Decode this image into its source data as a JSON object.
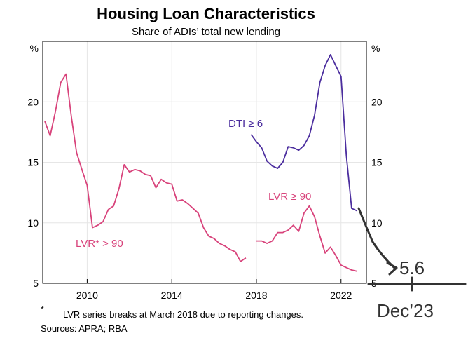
{
  "title": "Housing Loan Characteristics",
  "subtitle": "Share of ADIs’ total new lending",
  "footnote_marker": "*",
  "footnote": "LVR series breaks at March 2018 due to reporting changes.",
  "sources": "Sources: APRA; RBA",
  "annotations": {
    "value": "5.6",
    "date": "Dec’23"
  },
  "colors": {
    "dti": "#4b2d9e",
    "lvr": "#d8437b",
    "annotation": "#333333",
    "axis": "#000000",
    "grid": "#e6e6e6"
  },
  "chart_data": {
    "type": "line",
    "title": "Housing Loan Characteristics",
    "subtitle": "Share of ADIs’ total new lending",
    "ylabel_left": "%",
    "ylabel_right": "%",
    "xlim": [
      2007.9,
      2023.2
    ],
    "ylim": [
      5,
      25
    ],
    "x_ticks": [
      2010,
      2014,
      2018,
      2022
    ],
    "y_ticks": [
      5,
      10,
      15,
      20
    ],
    "grid": true,
    "series": [
      {
        "name": "LVR* > 90",
        "color": "#d8437b",
        "x": [
          2008.0,
          2008.25,
          2008.5,
          2008.75,
          2009.0,
          2009.25,
          2009.5,
          2009.75,
          2010.0,
          2010.25,
          2010.5,
          2010.75,
          2011.0,
          2011.25,
          2011.5,
          2011.75,
          2012.0,
          2012.25,
          2012.5,
          2012.75,
          2013.0,
          2013.25,
          2013.5,
          2013.75,
          2014.0,
          2014.25,
          2014.5,
          2014.75,
          2015.0,
          2015.25,
          2015.5,
          2015.75,
          2016.0,
          2016.25,
          2016.5,
          2016.75,
          2017.0,
          2017.25,
          2017.5
        ],
        "y": [
          18.4,
          17.2,
          19.2,
          21.6,
          22.3,
          18.8,
          15.8,
          14.4,
          13.1,
          9.6,
          9.8,
          10.1,
          11.1,
          11.4,
          12.8,
          14.8,
          14.2,
          14.4,
          14.3,
          14.0,
          13.9,
          12.9,
          13.6,
          13.3,
          13.2,
          11.8,
          11.9,
          11.6,
          11.2,
          10.8,
          9.6,
          8.9,
          8.7,
          8.3,
          8.1,
          7.8,
          7.6,
          6.8,
          7.1
        ]
      },
      {
        "name": "LVR ≥ 90",
        "color": "#d8437b",
        "x": [
          2018.0,
          2018.25,
          2018.5,
          2018.75,
          2019.0,
          2019.25,
          2019.5,
          2019.75,
          2020.0,
          2020.25,
          2020.5,
          2020.75,
          2021.0,
          2021.25,
          2021.5,
          2021.75,
          2022.0,
          2022.25,
          2022.5,
          2022.75
        ],
        "y": [
          8.5,
          8.5,
          8.3,
          8.5,
          9.2,
          9.2,
          9.4,
          9.8,
          9.3,
          10.8,
          11.4,
          10.5,
          8.9,
          7.5,
          8.0,
          7.3,
          6.5,
          6.3,
          6.1,
          6.0
        ]
      },
      {
        "name": "DTI ≥ 6",
        "color": "#4b2d9e",
        "x": [
          2017.75,
          2018.0,
          2018.25,
          2018.5,
          2018.75,
          2019.0,
          2019.25,
          2019.5,
          2019.75,
          2020.0,
          2020.25,
          2020.5,
          2020.75,
          2021.0,
          2021.25,
          2021.5,
          2021.75,
          2022.0,
          2022.25,
          2022.5,
          2022.75
        ],
        "y": [
          17.3,
          16.7,
          16.2,
          15.1,
          14.7,
          14.5,
          15.0,
          16.3,
          16.2,
          16.0,
          16.4,
          17.2,
          18.9,
          21.6,
          23.0,
          23.9,
          23.0,
          22.1,
          15.6,
          11.2,
          11.0
        ]
      }
    ],
    "labels": [
      {
        "text": "DTI ≥ 6",
        "series": "DTI ≥ 6"
      },
      {
        "text": "LVR ≥ 90",
        "series": "LVR ≥ 90"
      },
      {
        "text": "LVR* > 90",
        "series": "LVR* > 90"
      }
    ]
  }
}
